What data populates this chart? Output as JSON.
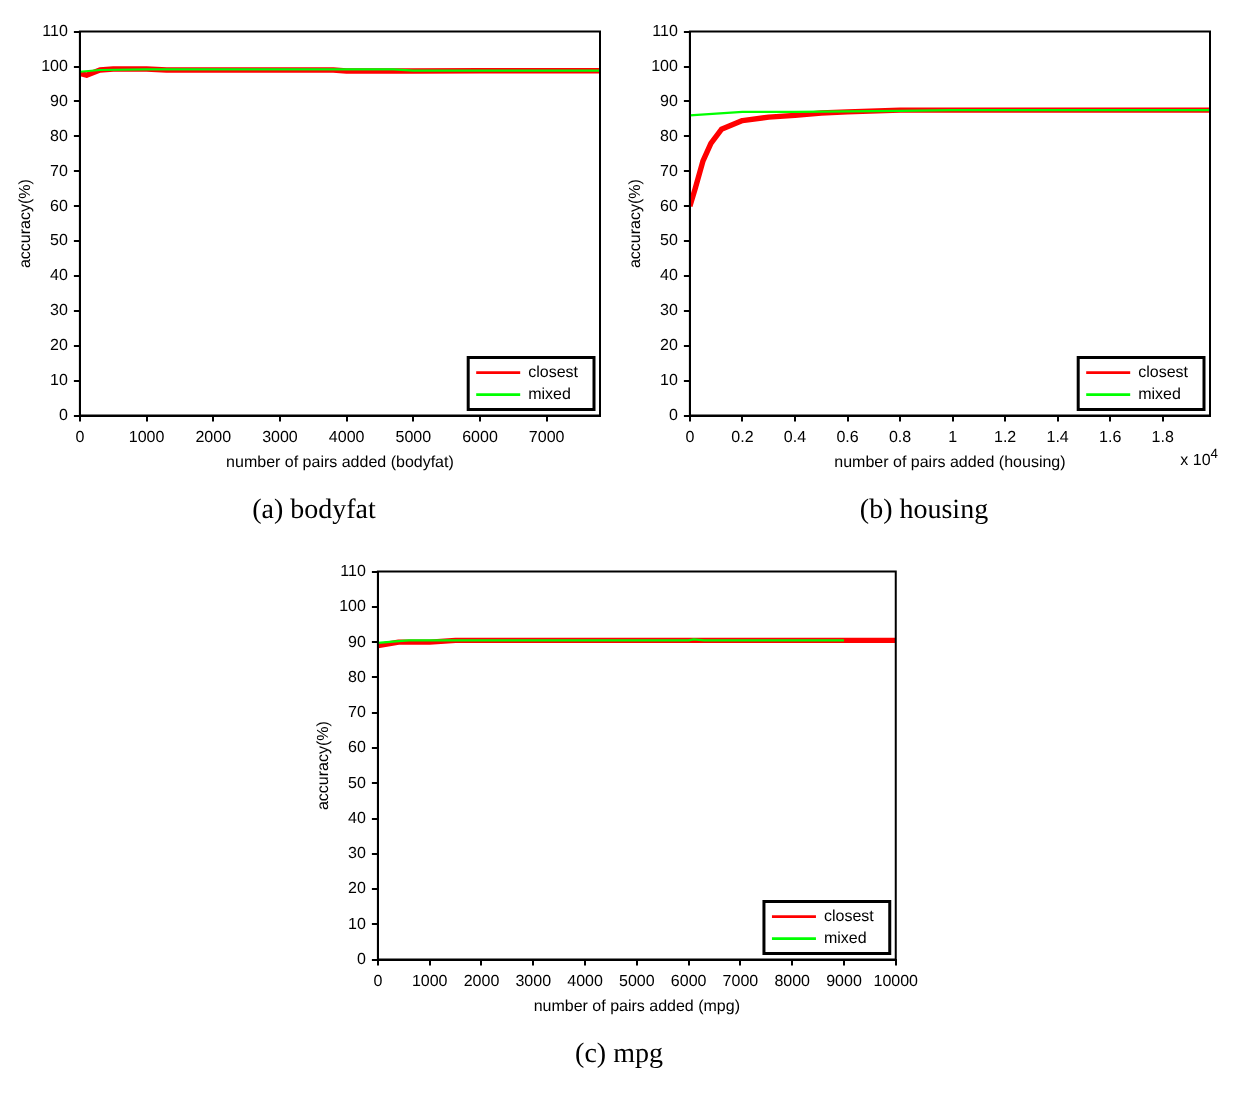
{
  "chart_data": [
    {
      "type": "line",
      "title": "(a) bodyfat",
      "xlabel": "number of pairs added (bodyfat)",
      "ylabel": "accuracy(%)",
      "xlim": [
        0,
        7800
      ],
      "xticks": [
        0,
        1000,
        2000,
        3000,
        4000,
        5000,
        6000,
        7000
      ],
      "ylim": [
        0,
        110
      ],
      "yticks": [
        0,
        10,
        20,
        30,
        40,
        50,
        60,
        70,
        80,
        90,
        100,
        110
      ],
      "grid": false,
      "legend": "bottom right",
      "marker": "none",
      "series": [
        {
          "name": "closest",
          "color": "#ff0000",
          "x": [
            0,
            100,
            300,
            500,
            1000,
            1300,
            2000,
            3800,
            4000,
            5000,
            6000,
            7000,
            7800
          ],
          "values": [
            98,
            97.5,
            99,
            99.3,
            99.3,
            99,
            99,
            99,
            98.7,
            98.7,
            98.8,
            98.8,
            98.8
          ]
        },
        {
          "name": "mixed",
          "color": "#00ff00",
          "x": [
            0,
            300,
            1000,
            2000,
            3000,
            4700,
            5000,
            6000,
            7000,
            7800
          ],
          "values": [
            98.5,
            99,
            99.2,
            99.2,
            99.2,
            99.2,
            98.8,
            98.8,
            98.8,
            98.8
          ]
        }
      ]
    },
    {
      "type": "line",
      "title": "(b) housing",
      "xlabel": "number of pairs added (housing)",
      "ylabel": "accuracy(%)",
      "annotations": [
        "x 10$^{4}$"
      ],
      "xlim": [
        0,
        1.98
      ],
      "xticks": [
        0,
        0.2,
        0.4,
        0.6,
        0.8,
        1,
        1.2,
        1.4,
        1.6,
        1.8
      ],
      "ylim": [
        0,
        110
      ],
      "yticks": [
        0,
        10,
        20,
        30,
        40,
        50,
        60,
        70,
        80,
        90,
        100,
        110
      ],
      "grid": false,
      "legend": "bottom right",
      "marker": "none",
      "series": [
        {
          "name": "closest",
          "color": "#ff0000",
          "x": [
            0,
            0.02,
            0.05,
            0.08,
            0.12,
            0.2,
            0.3,
            0.4,
            0.5,
            0.6,
            0.8,
            1,
            1.98
          ],
          "values": [
            60,
            65,
            73,
            78,
            82,
            84.5,
            85.5,
            86,
            86.7,
            87,
            87.5,
            87.5,
            87.5
          ]
        },
        {
          "name": "mixed",
          "color": "#00ff00",
          "x": [
            0,
            0.1,
            0.2,
            0.4,
            0.8,
            1,
            1.98
          ],
          "values": [
            86,
            86.5,
            87,
            87,
            87.3,
            87.5,
            87.5
          ]
        }
      ]
    },
    {
      "type": "line",
      "title": "(c) mpg",
      "xlabel": "number of pairs added (mpg)",
      "ylabel": "accuracy(%)",
      "xlim": [
        0,
        10000
      ],
      "xticks": [
        0,
        1000,
        2000,
        3000,
        4000,
        5000,
        6000,
        7000,
        8000,
        9000,
        10000
      ],
      "ylim": [
        0,
        110
      ],
      "yticks": [
        0,
        10,
        20,
        30,
        40,
        50,
        60,
        70,
        80,
        90,
        100,
        110
      ],
      "grid": false,
      "legend": "bottom right",
      "marker": "none",
      "series": [
        {
          "name": "closest",
          "color": "#ff0000",
          "x": [
            0,
            200,
            400,
            1000,
            1500,
            3000,
            6000,
            9000,
            10000
          ],
          "values": [
            89,
            89.5,
            90,
            90,
            90.5,
            90.5,
            90.5,
            90.5,
            90.5
          ]
        },
        {
          "name": "mixed",
          "color": "#00ff00",
          "x": [
            0,
            400,
            600,
            3000,
            6000,
            6100,
            6300,
            9000
          ],
          "values": [
            89.8,
            90.3,
            90.5,
            90.5,
            90.5,
            90.8,
            90.5,
            90.5
          ]
        }
      ]
    }
  ]
}
